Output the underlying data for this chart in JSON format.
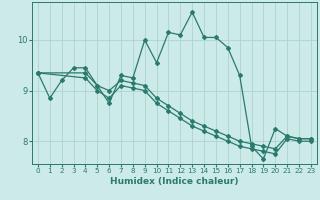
{
  "xlabel": "Humidex (Indice chaleur)",
  "bg_color": "#cceae7",
  "grid_color": "#aed4d0",
  "line_color": "#2a7a6e",
  "xlim": [
    -0.5,
    23.5
  ],
  "ylim": [
    7.55,
    10.75
  ],
  "yticks": [
    8,
    9,
    10
  ],
  "xticks": [
    0,
    1,
    2,
    3,
    4,
    5,
    6,
    7,
    8,
    9,
    10,
    11,
    12,
    13,
    14,
    15,
    16,
    17,
    18,
    19,
    20,
    21,
    22,
    23
  ],
  "line1_x": [
    0,
    1,
    2,
    3,
    4,
    5,
    6,
    7,
    8,
    9,
    10,
    11,
    12,
    13,
    14,
    15,
    16,
    17,
    18,
    19,
    20,
    21,
    22,
    23
  ],
  "line1_y": [
    9.35,
    8.85,
    9.2,
    9.45,
    9.45,
    9.1,
    8.75,
    9.3,
    9.25,
    10.0,
    9.55,
    10.15,
    10.1,
    10.55,
    10.05,
    10.05,
    9.85,
    9.3,
    7.9,
    7.65,
    8.25,
    8.1,
    8.05,
    8.05
  ],
  "line2_x": [
    0,
    4,
    5,
    6,
    7,
    8,
    9,
    10,
    11,
    12,
    13,
    14,
    15,
    16,
    17,
    18,
    19,
    20,
    21,
    22,
    23
  ],
  "line2_y": [
    9.35,
    9.35,
    9.1,
    9.0,
    9.2,
    9.15,
    9.1,
    8.85,
    8.7,
    8.55,
    8.4,
    8.3,
    8.2,
    8.1,
    8.0,
    7.95,
    7.9,
    7.85,
    8.1,
    8.05,
    8.05
  ],
  "line3_x": [
    0,
    4,
    5,
    6,
    7,
    8,
    9,
    10,
    11,
    12,
    13,
    14,
    15,
    16,
    17,
    18,
    19,
    20,
    21,
    22,
    23
  ],
  "line3_y": [
    9.35,
    9.25,
    9.0,
    8.85,
    9.1,
    9.05,
    9.0,
    8.75,
    8.6,
    8.45,
    8.3,
    8.2,
    8.1,
    8.0,
    7.9,
    7.85,
    7.8,
    7.75,
    8.05,
    8.0,
    8.0
  ]
}
